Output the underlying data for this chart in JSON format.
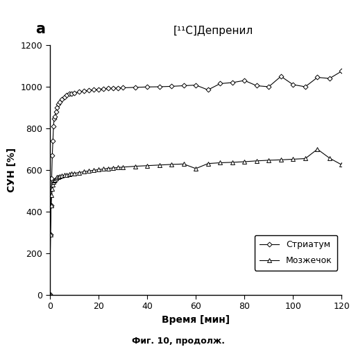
{
  "title": "[¹¹C]Депренил",
  "label_a": "a",
  "xlabel": "Время [мин]",
  "ylabel": "СУН [%]",
  "caption": "Фиг. 10, продолж.",
  "legend_striatum": "Стриатум",
  "legend_cerebellum": "Мозжечок",
  "xlim": [
    0,
    120
  ],
  "ylim": [
    0,
    1200
  ],
  "xticks": [
    0,
    20,
    40,
    60,
    80,
    100,
    120
  ],
  "yticks": [
    0,
    200,
    400,
    600,
    800,
    1000,
    1200
  ],
  "striatum_x": [
    0.0,
    0.25,
    0.5,
    0.75,
    1.0,
    1.25,
    1.5,
    1.75,
    2.0,
    2.5,
    3.0,
    3.5,
    4.0,
    5.0,
    6.0,
    7.0,
    8.0,
    9.0,
    10.0,
    12.0,
    14.0,
    16.0,
    18.0,
    20.0,
    22.0,
    24.0,
    26.0,
    28.0,
    30.0,
    35.0,
    40.0,
    45.0,
    50.0,
    55.0,
    60.0,
    65.0,
    70.0,
    75.0,
    80.0,
    85.0,
    90.0,
    95.0,
    100.0,
    105.0,
    110.0,
    115.0,
    120.0
  ],
  "striatum_y": [
    5,
    290,
    430,
    560,
    670,
    740,
    810,
    845,
    855,
    880,
    900,
    915,
    925,
    940,
    950,
    960,
    965,
    968,
    970,
    975,
    980,
    982,
    985,
    988,
    990,
    992,
    993,
    994,
    995,
    997,
    999,
    1000,
    1002,
    1005,
    1008,
    985,
    1015,
    1020,
    1030,
    1005,
    1000,
    1050,
    1010,
    1000,
    1045,
    1040,
    1075
  ],
  "cerebellum_x": [
    0.0,
    0.25,
    0.5,
    0.75,
    1.0,
    1.25,
    1.5,
    1.75,
    2.0,
    2.5,
    3.0,
    3.5,
    4.0,
    5.0,
    6.0,
    7.0,
    8.0,
    9.0,
    10.0,
    12.0,
    14.0,
    16.0,
    18.0,
    20.0,
    22.0,
    24.0,
    26.0,
    28.0,
    30.0,
    35.0,
    40.0,
    45.0,
    50.0,
    55.0,
    60.0,
    65.0,
    70.0,
    75.0,
    80.0,
    85.0,
    90.0,
    95.0,
    100.0,
    105.0,
    110.0,
    115.0,
    120.0
  ],
  "cerebellum_y": [
    5,
    290,
    430,
    480,
    510,
    530,
    543,
    550,
    555,
    560,
    565,
    568,
    570,
    573,
    576,
    578,
    580,
    582,
    584,
    588,
    592,
    596,
    599,
    602,
    605,
    608,
    610,
    612,
    614,
    618,
    621,
    624,
    627,
    629,
    607,
    631,
    635,
    637,
    640,
    644,
    647,
    649,
    652,
    655,
    700,
    657,
    625
  ],
  "line_color": "#000000",
  "bg_color": "#ffffff"
}
